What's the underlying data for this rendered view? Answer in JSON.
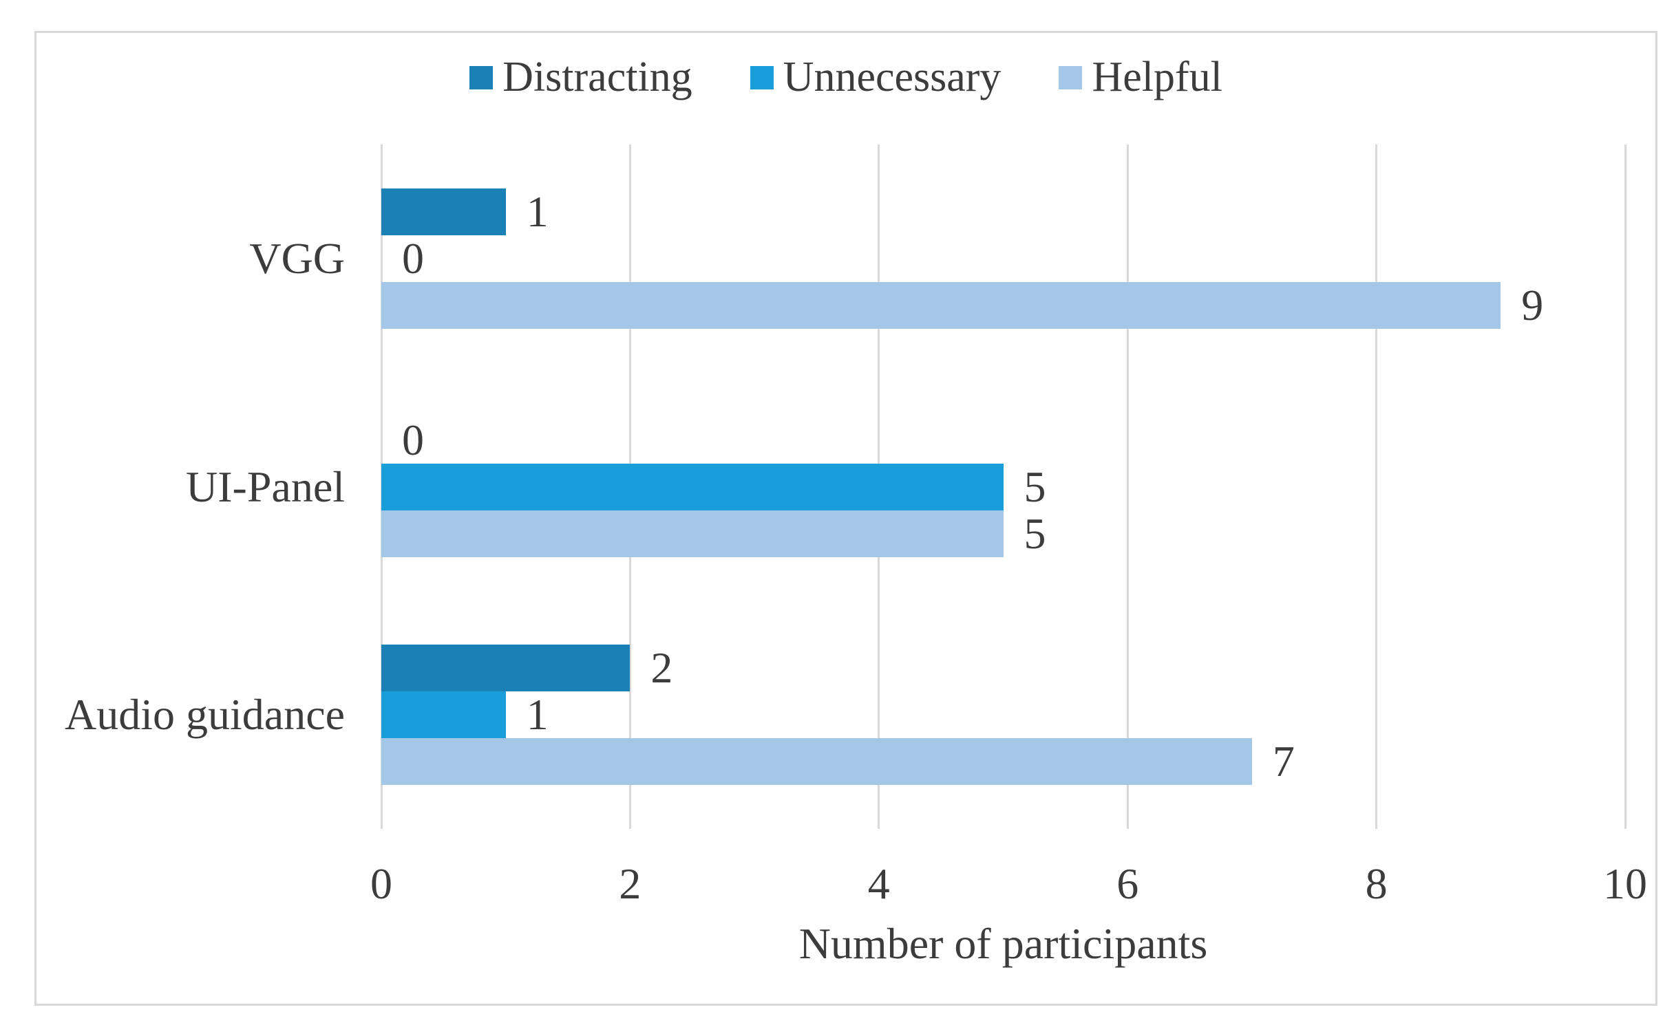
{
  "chart_data": {
    "type": "bar",
    "orientation": "horizontal",
    "title": "",
    "xlabel": "Number of participants",
    "ylabel": "",
    "categories": [
      "VGG",
      "UI-Panel",
      "Audio guidance"
    ],
    "series": [
      {
        "name": "Distracting",
        "color": "#1A80B6",
        "values": [
          1,
          0,
          2
        ]
      },
      {
        "name": "Unnecessary",
        "color": "#199ED9",
        "values": [
          0,
          5,
          1
        ]
      },
      {
        "name": "Helpful",
        "color": "#A4C7E8",
        "values": [
          9,
          5,
          7
        ]
      }
    ],
    "x_ticks": [
      0,
      2,
      4,
      6,
      8,
      10
    ],
    "xlim": [
      0,
      10
    ],
    "legend_position": "top",
    "grid": "vertical-gridlines",
    "data_labels": true
  },
  "colors": {
    "text": "#3C3C3C",
    "gridline": "#D9D9D9",
    "frame_border": "#D9D9D9",
    "background": "#FFFFFF"
  }
}
